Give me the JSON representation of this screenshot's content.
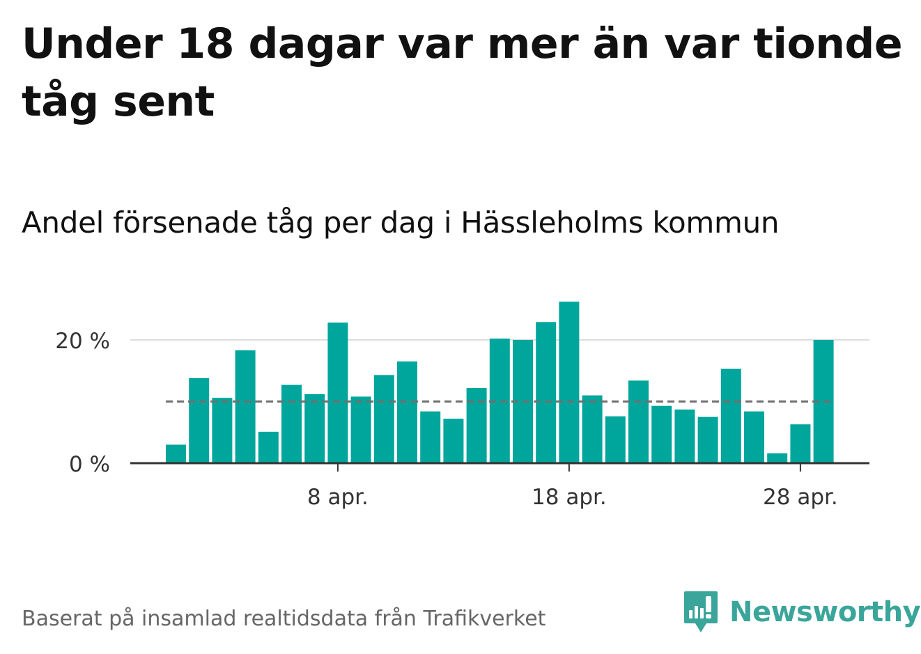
{
  "header": {
    "title": "Under 18 dagar var mer än var tionde tåg sent",
    "subtitle": "Andel försenade tåg per dag i Hässleholms kommun"
  },
  "footer": {
    "source": "Baserat på insamlad realtidsdata från Trafikverket"
  },
  "brand": {
    "name": "Newsworthy",
    "icon": "newsworthy-logo-icon",
    "color": "#3aa59a"
  },
  "chart_data": {
    "type": "bar",
    "x": [
      "2026-04-01",
      "2026-04-02",
      "2026-04-03",
      "2026-04-04",
      "2026-04-05",
      "2026-04-06",
      "2026-04-07",
      "2026-04-08",
      "2026-04-09",
      "2026-04-10",
      "2026-04-11",
      "2026-04-12",
      "2026-04-13",
      "2026-04-14",
      "2026-04-15",
      "2026-04-16",
      "2026-04-17",
      "2026-04-18",
      "2026-04-19",
      "2026-04-20",
      "2026-04-21",
      "2026-04-22",
      "2026-04-23",
      "2026-04-24",
      "2026-04-25",
      "2026-04-26",
      "2026-04-27",
      "2026-04-28",
      "2026-04-29"
    ],
    "values": [
      3,
      13.8,
      10.6,
      18.3,
      5.1,
      12.7,
      11.2,
      22.8,
      10.8,
      14.3,
      16.5,
      8.4,
      7.2,
      12.2,
      20.2,
      20,
      22.9,
      26.2,
      11,
      7.6,
      13.4,
      9.3,
      8.7,
      7.5,
      15.3,
      8.4,
      1.6,
      6.3,
      20
    ],
    "reference_line": 10,
    "reference_line_style": "dashed",
    "ylim": [
      0,
      27
    ],
    "yticks": [
      0,
      20
    ],
    "ytick_labels": [
      "0 %",
      "20 %"
    ],
    "xtick_labels": [
      {
        "date": "2026-04-08",
        "label": "8 apr."
      },
      {
        "date": "2026-04-18",
        "label": "18 apr."
      },
      {
        "date": "2026-04-28",
        "label": "28 apr."
      }
    ],
    "grid": true,
    "bar_color": "#00a69c",
    "reference_line_color": "#707070",
    "gridline_color": "#dddddd",
    "axis_color": "#333333",
    "tick_label_color": "#333333"
  }
}
